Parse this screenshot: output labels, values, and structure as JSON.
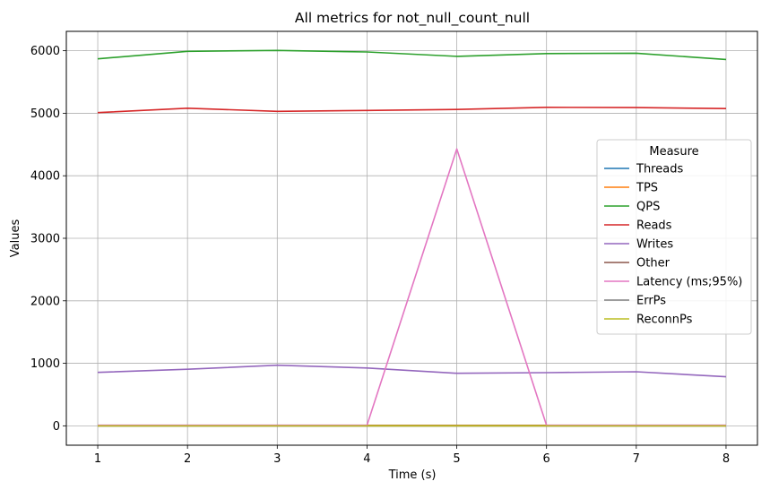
{
  "chart_data": {
    "type": "line",
    "title": "All metrics for not_null_count_null",
    "xlabel": "Time (s)",
    "ylabel": "Values",
    "x": [
      1,
      2,
      3,
      4,
      5,
      6,
      7,
      8
    ],
    "xlim": [
      0.65,
      8.35
    ],
    "ylim": [
      -310,
      6310
    ],
    "xticks": [
      1,
      2,
      3,
      4,
      5,
      6,
      7,
      8
    ],
    "yticks": [
      0,
      1000,
      2000,
      3000,
      4000,
      5000,
      6000
    ],
    "grid": true,
    "legend": {
      "title": "Measure",
      "placement": "center-right"
    },
    "series": [
      {
        "name": "Threads",
        "color": "#1f77b4",
        "values": [
          8,
          8,
          8,
          8,
          8,
          8,
          8,
          8
        ]
      },
      {
        "name": "TPS",
        "color": "#ff7f0e",
        "values": [
          6,
          6,
          6,
          6,
          6,
          6,
          6,
          6
        ]
      },
      {
        "name": "QPS",
        "color": "#2ca02c",
        "values": [
          5870,
          5990,
          6005,
          5980,
          5910,
          5955,
          5960,
          5860
        ]
      },
      {
        "name": "Reads",
        "color": "#d62728",
        "values": [
          5010,
          5080,
          5030,
          5045,
          5060,
          5095,
          5090,
          5075
        ]
      },
      {
        "name": "Writes",
        "color": "#9467bd",
        "values": [
          855,
          905,
          970,
          925,
          840,
          850,
          865,
          785
        ]
      },
      {
        "name": "Other",
        "color": "#8c564b",
        "values": [
          0,
          0,
          0,
          0,
          0,
          0,
          0,
          0
        ]
      },
      {
        "name": "Latency (ms;95%)",
        "color": "#e377c2",
        "values": [
          10,
          10,
          10,
          10,
          4430,
          10,
          10,
          10
        ]
      },
      {
        "name": "ErrPs",
        "color": "#7f7f7f",
        "values": [
          0,
          0,
          0,
          0,
          0,
          0,
          0,
          0
        ]
      },
      {
        "name": "ReconnPs",
        "color": "#bcbd22",
        "values": [
          0,
          0,
          0,
          0,
          0,
          0,
          0,
          0
        ]
      }
    ]
  }
}
